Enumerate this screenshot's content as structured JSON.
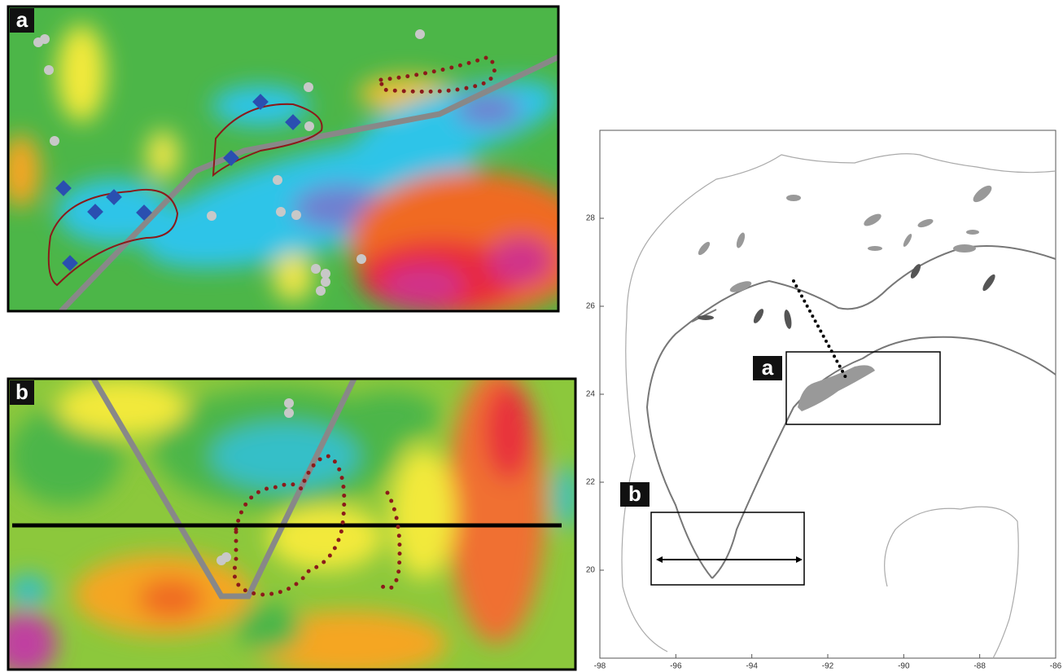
{
  "panels": [
    {
      "label": "a"
    },
    {
      "label": "b"
    }
  ],
  "map": {
    "box_labels": [
      "a",
      "b"
    ],
    "xlim": [
      -98,
      -86
    ],
    "ylim": [
      18,
      30
    ],
    "xticks": [
      -98,
      -96,
      -94,
      -92,
      -90,
      -88,
      -86
    ],
    "yticks": [
      20,
      22,
      24,
      26,
      28
    ]
  }
}
